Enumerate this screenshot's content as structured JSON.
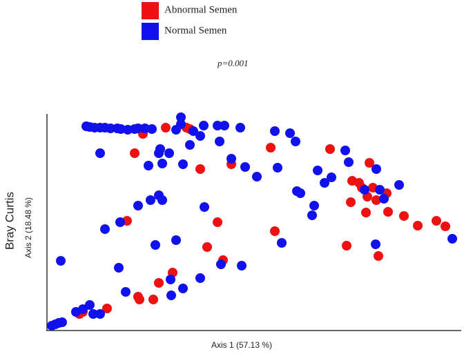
{
  "chart_data": {
    "type": "scatter",
    "subtitle": "p=0.001",
    "xlabel": "Axis 1 (57.13 %)",
    "ylabel": "Bray Curtis",
    "ylabel2": "Axis 2 (18.48 %)",
    "xlim": [
      0,
      600
    ],
    "ylim": [
      0,
      310
    ],
    "series": [
      {
        "name": "Abnormal  Semen",
        "color": "#ee1111",
        "x": [
          139,
          172,
          202,
          207,
          127,
          222,
          267,
          324,
          410,
          442,
          452,
          456,
          467,
          472,
          477,
          492,
          464,
          440,
          494,
          462,
          517,
          537,
          564,
          577,
          116,
          247,
          330,
          232,
          255,
          434,
          480,
          182,
          162,
          154,
          132,
          134,
          87,
          47,
          52
        ],
        "values": [
          284,
          293,
          293,
          291,
          256,
          233,
          240,
          264,
          262,
          216,
          213,
          206,
          242,
          206,
          188,
          198,
          193,
          185,
          171,
          170,
          165,
          151,
          158,
          150,
          158,
          156,
          143,
          120,
          101,
          122,
          107,
          83,
          68,
          44,
          48,
          44,
          31,
          23,
          26
        ]
      },
      {
        "name": "Normal Semen",
        "color": "#1111ee",
        "x": [
          57,
          62,
          69,
          77,
          84,
          92,
          102,
          107,
          117,
          127,
          132,
          142,
          152,
          194,
          194,
          187,
          212,
          227,
          247,
          257,
          280,
          330,
          352,
          360,
          432,
          437,
          77,
          162,
          177,
          147,
          167,
          197,
          222,
          207,
          250,
          267,
          287,
          304,
          334,
          362,
          367,
          392,
          402,
          412,
          477,
          482,
          510,
          460,
          387,
          384,
          162,
          150,
          167,
          132,
          106,
          84,
          228,
          157,
          187,
          104,
          114,
          179,
          197,
          222,
          252,
          282,
          340,
          476,
          488,
          587,
          20,
          42,
          52,
          62,
          67,
          77,
          7,
          12,
          17,
          22,
          180,
          164
        ],
        "values": [
          295,
          294,
          293,
          293,
          293,
          292,
          292,
          291,
          290,
          291,
          292,
          292,
          291,
          308,
          298,
          290,
          288,
          296,
          296,
          296,
          293,
          288,
          285,
          273,
          260,
          243,
          256,
          256,
          256,
          238,
          241,
          240,
          281,
          268,
          273,
          248,
          236,
          222,
          235,
          201,
          198,
          231,
          213,
          221,
          233,
          203,
          210,
          203,
          180,
          166,
          195,
          188,
          188,
          180,
          156,
          146,
          178,
          123,
          130,
          90,
          55,
          73,
          60,
          75,
          95,
          93,
          126,
          124,
          190,
          132,
          100,
          26,
          30,
          36,
          23,
          23,
          6,
          8,
          10,
          11,
          50,
          262
        ]
      }
    ]
  }
}
